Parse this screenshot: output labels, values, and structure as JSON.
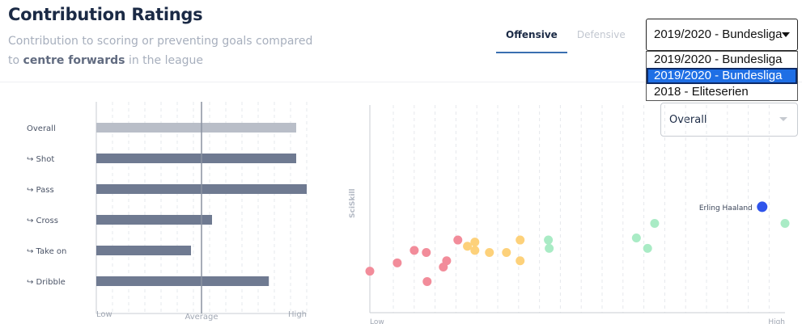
{
  "header": {
    "title": "Contribution Ratings",
    "subtitle_prefix": "Contribution to scoring or preventing goals compared to",
    "subtitle_bold": "centre forwards",
    "subtitle_suffix": "in the league"
  },
  "tabs": [
    {
      "label": "Offensive",
      "active": true
    },
    {
      "label": "Defensive",
      "active": false
    }
  ],
  "season_select": {
    "value": "2019/2020 - Bundesliga",
    "options": [
      "2019/2020 - Bundesliga",
      "2019/2020 - Bundesliga",
      "2018 - Eliteserien"
    ],
    "highlighted_index": 1
  },
  "metric_select": {
    "value": "Overall"
  },
  "colors": {
    "overall_bar": "#b9bec8",
    "bar": "#6f7a91",
    "highlight": "#2f54eb",
    "red": "#f28c9a",
    "yellow": "#fdd17a",
    "green": "#a9ebc5"
  },
  "chart_data": [
    {
      "type": "bar",
      "orientation": "horizontal",
      "categories": [
        "Overall",
        "↪ Shot",
        "↪ Pass",
        "↪ Cross",
        "↪ Take on",
        "↪ Dribble"
      ],
      "values": [
        0.95,
        0.95,
        1.0,
        0.55,
        0.45,
        0.82
      ],
      "xlabels": [
        "Low",
        "Average",
        "High"
      ],
      "xlim": [
        0,
        1
      ],
      "average_line": 0.5,
      "grid": true
    },
    {
      "type": "scatter",
      "ylabel": "SciSkill",
      "xlabels": [
        "Low",
        "High"
      ],
      "xlim": [
        0,
        1
      ],
      "ylim": [
        0,
        1
      ],
      "grid": true,
      "highlight": {
        "label": "Erling Haaland",
        "x": 0.945,
        "y": 0.51
      },
      "points": [
        {
          "x": 0.0,
          "y": 0.2,
          "group": "red"
        },
        {
          "x": 0.066,
          "y": 0.24,
          "group": "red"
        },
        {
          "x": 0.107,
          "y": 0.3,
          "group": "red"
        },
        {
          "x": 0.136,
          "y": 0.29,
          "group": "red"
        },
        {
          "x": 0.138,
          "y": 0.15,
          "group": "red"
        },
        {
          "x": 0.177,
          "y": 0.22,
          "group": "red"
        },
        {
          "x": 0.185,
          "y": 0.25,
          "group": "red"
        },
        {
          "x": 0.212,
          "y": 0.35,
          "group": "red"
        },
        {
          "x": 0.235,
          "y": 0.32,
          "group": "yellow"
        },
        {
          "x": 0.253,
          "y": 0.34,
          "group": "yellow"
        },
        {
          "x": 0.253,
          "y": 0.3,
          "group": "yellow"
        },
        {
          "x": 0.288,
          "y": 0.29,
          "group": "yellow"
        },
        {
          "x": 0.329,
          "y": 0.29,
          "group": "yellow"
        },
        {
          "x": 0.362,
          "y": 0.35,
          "group": "yellow"
        },
        {
          "x": 0.362,
          "y": 0.25,
          "group": "yellow"
        },
        {
          "x": 0.43,
          "y": 0.35,
          "group": "green"
        },
        {
          "x": 0.432,
          "y": 0.31,
          "group": "green"
        },
        {
          "x": 0.642,
          "y": 0.36,
          "group": "green"
        },
        {
          "x": 0.669,
          "y": 0.31,
          "group": "green"
        },
        {
          "x": 0.686,
          "y": 0.43,
          "group": "green"
        },
        {
          "x": 1.0,
          "y": 0.43,
          "group": "green"
        }
      ]
    }
  ]
}
